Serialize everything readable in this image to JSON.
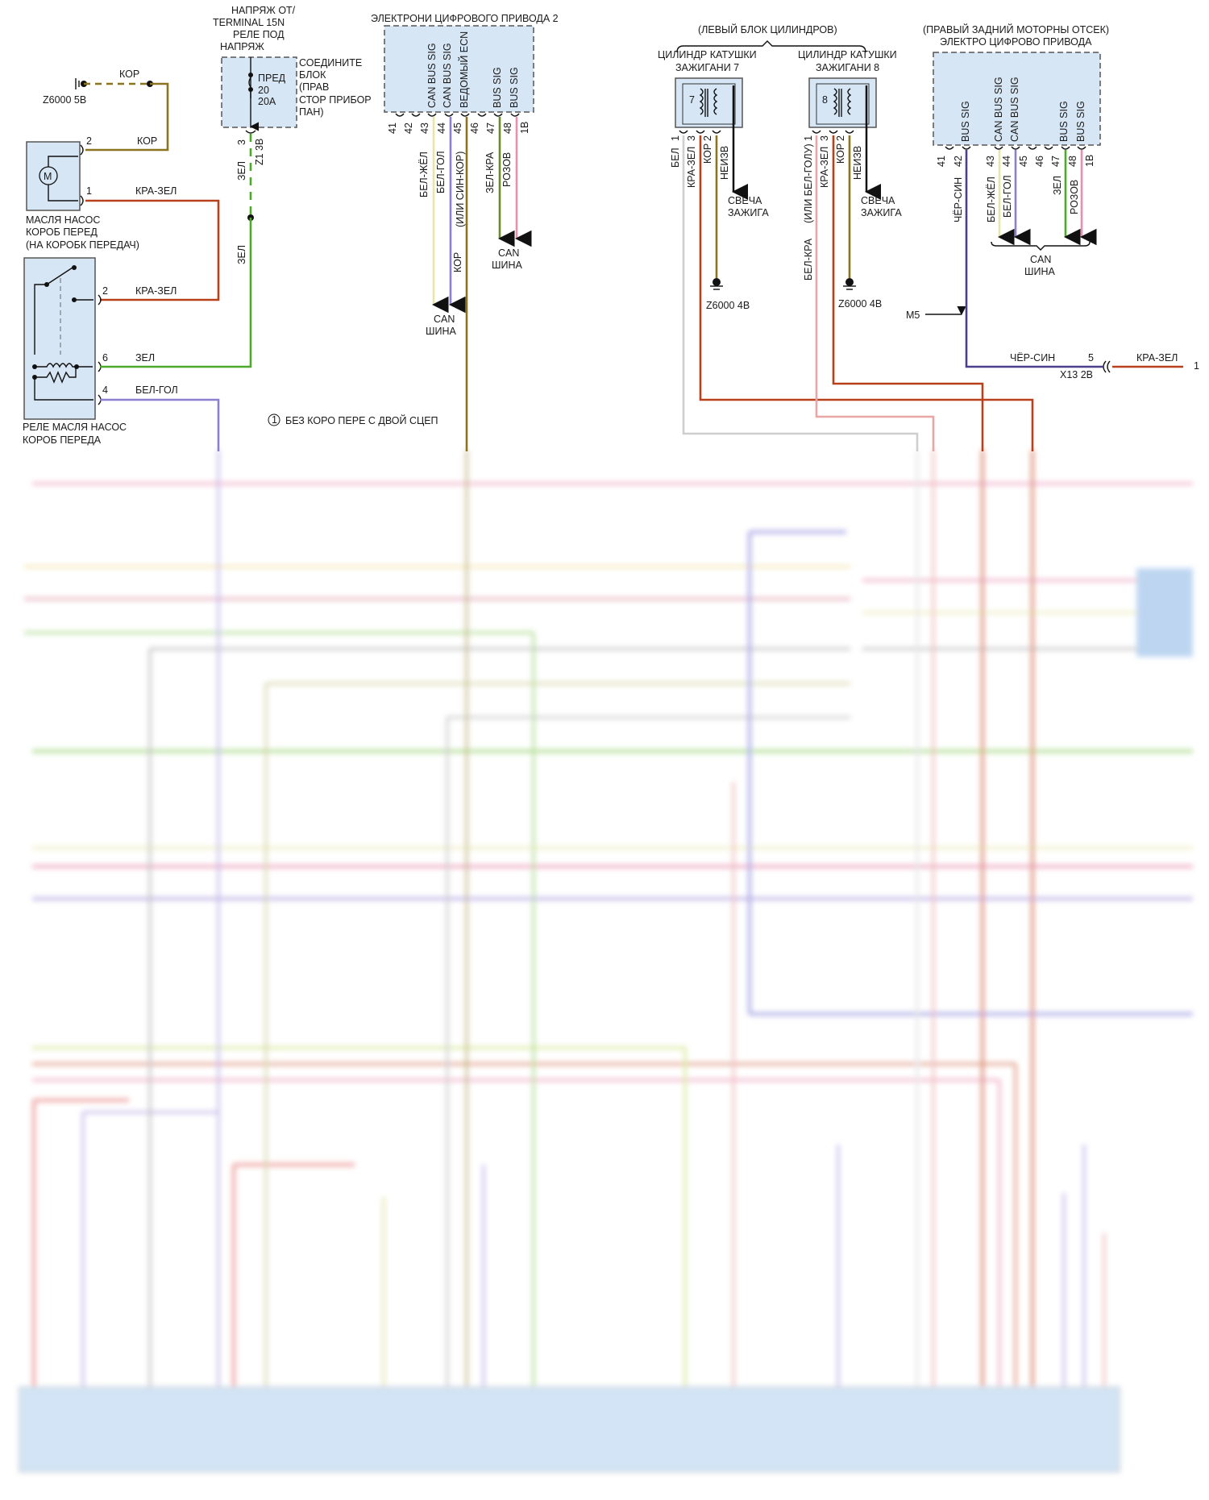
{
  "wire_colors": {
    "kor": "#8a7420",
    "kra_zel": "#b8411c",
    "zel": "#4caa2a",
    "bel_gol": "#8b80cf",
    "bel_zhel": "#e6e6a8",
    "rozov": "#e88fb0",
    "zel_kra": "#6b8a2a",
    "chyor_sin": "#4b3f8c",
    "bel": "#cfcfcf",
    "bel_kra": "#e8a6a6"
  },
  "ground_z6000_5b": {
    "wire": "КОР",
    "label": "Z6000 5В"
  },
  "oil_pump": {
    "pin2": "2",
    "pin2_wire": "КОР",
    "pin1": "1",
    "pin1_wire": "КРА-ЗЕЛ",
    "motor_symbol": "M",
    "label": [
      "МАСЛЯ НАСОС",
      "КОРОБ ПЕРЕД",
      "(НА КОРОБК ПЕРЕДАЧ)"
    ]
  },
  "oil_pump_relay": {
    "pin2": "2",
    "pin2_wire": "КРА-ЗЕЛ",
    "pin6": "6",
    "pin6_wire": "ЗЕЛ",
    "pin4": "4",
    "pin4_wire": "БЕЛ-ГОЛ",
    "label": [
      "РЕЛЕ МАСЛЯ НАСОС",
      "КОРОБ ПЕРЕДА"
    ]
  },
  "fuse_block": {
    "supply": [
      "НАПРЯЖ ОТ/",
      "TERMINAL 15N",
      "РЕЛЕ ПОД",
      "НАПРЯЖ"
    ],
    "fuse": [
      "ПРЕД",
      "20",
      "20А"
    ],
    "label": [
      "СОЕДИНИТЕ",
      "БЛОК",
      "(ПРАВ",
      "СТОР ПРИБОР",
      "ПАН)"
    ],
    "pin": "3",
    "connector": "Z1 3B",
    "wire1": "ЗЕЛ",
    "wire2": "ЗЕЛ"
  },
  "note": {
    "symbol": "1",
    "text": "БЕЗ КОРО ПЕРЕ С ДВОЙ СЦЕП"
  },
  "ecm2": {
    "title": "ЭЛЕКТРОНИ ЦИФРОВОГО ПРИВОДА 2",
    "signals": [
      "CAN BUS SIG",
      "CAN BUS SIG",
      "ВЕДОМЫЙ ECN",
      "BUS SIG",
      "BUS SIG"
    ],
    "pins": [
      "41",
      "42",
      "43",
      "44",
      "45",
      "46",
      "47",
      "48",
      "1В"
    ],
    "wires": [
      "БЕЛ-ЖЁЛ",
      "БЕЛ-ГОЛ",
      "(ИЛИ СИН-КОР)",
      "ЗЕЛ-КРА",
      "РОЗОВ",
      "КОР"
    ],
    "can1": [
      "CAN",
      "ШИНА"
    ],
    "can2": [
      "CAN",
      "ШИНА"
    ]
  },
  "left_bank": {
    "title": "(ЛЕВЫЙ БЛОК ЦИЛИНДРОВ)",
    "coil7": {
      "label": [
        "ЦИЛИНДР КАТУШКИ",
        "ЗАЖИГАНИ 7"
      ],
      "number": "7",
      "pins": [
        "1",
        "3",
        "2"
      ],
      "wires": [
        "БЕЛ",
        "КРА-ЗЕЛ",
        "КОР",
        "НЕИЗВ"
      ],
      "plug": [
        "СВЕЧА",
        "ЗАЖИГА"
      ],
      "ground": "Z6000 4В"
    },
    "coil8": {
      "label": [
        "ЦИЛИНДР КАТУШКИ",
        "ЗАЖИГАНИ 8"
      ],
      "number": "8",
      "pins": [
        "1",
        "3",
        "2"
      ],
      "wires": [
        "(ИЛИ БЕЛ-ГОЛУ)",
        "КРА-ЗЕЛ",
        "КОР",
        "НЕИЗВ",
        "БЕЛ-КРА"
      ],
      "plug": [
        "СВЕЧА",
        "ЗАЖИГА"
      ],
      "ground": "Z6000 4В"
    }
  },
  "ecm_right": {
    "title": [
      "(ПРАВЫЙ ЗАДНИЙ МОТОРНЫ ОТСЕК)",
      "ЭЛЕКТРО ЦИФРОВО ПРИВОДА"
    ],
    "signals": [
      "BUS SIG",
      "CAN BUS SIG",
      "CAN BUS SIG",
      "BUS SIG",
      "BUS SIG"
    ],
    "pins": [
      "41",
      "42",
      "43",
      "44",
      "45",
      "46",
      "47",
      "48",
      "1В"
    ],
    "wires": [
      "ЧЁР-СИН",
      "БЕЛ-ЖЁЛ",
      "БЕЛ-ГОЛ",
      "ЗЕЛ",
      "РОЗОВ"
    ],
    "can": [
      "CAN",
      "ШИНА"
    ],
    "marker": "M5",
    "connector": {
      "wire_left": "ЧЁР-СИН",
      "pin": "5",
      "name": "X13 2B",
      "wire_right": "КРА-ЗЕЛ",
      "end": "1"
    }
  }
}
